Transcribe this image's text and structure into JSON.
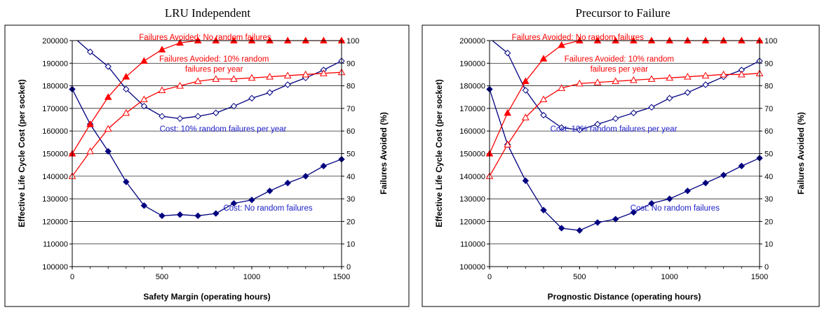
{
  "colors": {
    "cost": "#000080",
    "failures": "#ff0000",
    "grid": "#000000",
    "frame": "#000000",
    "annotation_cost": "#1c1cc8"
  },
  "chart_data": [
    {
      "type": "line",
      "title": "LRU Independent",
      "xlabel": "Safety Margin (operating hours)",
      "ylabel": "Effective Life Cycle Cost (per socket)",
      "y2label": "Failures Avoided (%)",
      "xlim": [
        0,
        1500
      ],
      "ylim": [
        100000,
        200000
      ],
      "y2lim": [
        0,
        100
      ],
      "x_ticks": [
        "0",
        "500",
        "1000",
        "1500"
      ],
      "y_ticks": [
        "100000",
        "110000",
        "120000",
        "130000",
        "140000",
        "150000",
        "160000",
        "170000",
        "180000",
        "190000",
        "200000"
      ],
      "y2_ticks": [
        "0",
        "10",
        "20",
        "30",
        "40",
        "50",
        "60",
        "70",
        "80",
        "90",
        "100"
      ],
      "grid": true,
      "x": [
        0,
        100,
        200,
        300,
        400,
        500,
        600,
        700,
        800,
        900,
        1000,
        1100,
        1200,
        1300,
        1400,
        1500
      ],
      "series": [
        {
          "axis": "left",
          "marker": "diamond-filled",
          "values": [
            178500,
            163000,
            151000,
            137500,
            127000,
            122500,
            123000,
            122500,
            123500,
            128000,
            129500,
            133500,
            137000,
            140000,
            144500,
            147500
          ]
        },
        {
          "axis": "left",
          "marker": "diamond-open",
          "values": [
            202000,
            195000,
            188500,
            178500,
            171000,
            166500,
            165500,
            166500,
            168000,
            171000,
            174500,
            177000,
            180500,
            183500,
            187000,
            191000
          ]
        },
        {
          "axis": "right",
          "marker": "triangle-filled",
          "values": [
            50,
            63,
            75,
            84,
            91,
            96,
            99,
            100,
            100,
            100,
            100,
            100,
            100,
            100,
            100,
            100
          ]
        },
        {
          "axis": "right",
          "marker": "triangle-open",
          "values": [
            40,
            51,
            61,
            68,
            74,
            78,
            80,
            82,
            83,
            83,
            83.5,
            84,
            84.5,
            85,
            85.5,
            86
          ]
        }
      ],
      "annotations": [
        {
          "text": "Failures Avoided: No random failures",
          "color": "red",
          "x": 740,
          "y2": 101.5
        },
        {
          "text": "Failures Avoided: 10% random",
          "color": "red",
          "x": 790,
          "y2": 92
        },
        {
          "text": "failures per year",
          "color": "red",
          "x": 790,
          "y2": 87.5
        },
        {
          "text": "Cost: 10% random failures per year",
          "color": "blue",
          "x": 840,
          "y2": 61
        },
        {
          "text": "Cost: No random failures",
          "color": "blue",
          "x": 1090,
          "y2": 26
        }
      ]
    },
    {
      "type": "line",
      "title": "Precursor to Failure",
      "xlabel": "Prognostic Distance (operating hours)",
      "ylabel": "Effective Life Cycle Cost (per socket)",
      "y2label": "Failures Avoided (%)",
      "xlim": [
        0,
        1500
      ],
      "ylim": [
        100000,
        200000
      ],
      "y2lim": [
        0,
        100
      ],
      "x_ticks": [
        "0",
        "500",
        "1000",
        "1500"
      ],
      "y_ticks": [
        "100000",
        "110000",
        "120000",
        "130000",
        "140000",
        "150000",
        "160000",
        "170000",
        "180000",
        "190000",
        "200000"
      ],
      "y2_ticks": [
        "0",
        "10",
        "20",
        "30",
        "40",
        "50",
        "60",
        "70",
        "80",
        "90",
        "100"
      ],
      "grid": true,
      "x": [
        0,
        100,
        200,
        300,
        400,
        500,
        600,
        700,
        800,
        900,
        1000,
        1100,
        1200,
        1300,
        1400,
        1500
      ],
      "series": [
        {
          "axis": "left",
          "marker": "diamond-filled",
          "values": [
            178500,
            154000,
            138000,
            125000,
            117000,
            116000,
            119500,
            121000,
            124000,
            128000,
            130000,
            133500,
            137000,
            140500,
            144500,
            148000
          ]
        },
        {
          "axis": "left",
          "marker": "diamond-open",
          "values": [
            201000,
            194500,
            178000,
            167000,
            161500,
            160500,
            163000,
            165500,
            168000,
            170500,
            174500,
            177000,
            180500,
            184000,
            187000,
            191000
          ]
        },
        {
          "axis": "right",
          "marker": "triangle-filled",
          "values": [
            50,
            68,
            82,
            92,
            98,
            100,
            100,
            100,
            100,
            100,
            100,
            100,
            100,
            100,
            100,
            100
          ]
        },
        {
          "axis": "right",
          "marker": "triangle-open",
          "values": [
            40,
            54,
            66,
            74,
            79,
            81,
            81.5,
            82,
            82.5,
            83,
            83.5,
            84,
            84.5,
            85,
            85,
            85.5
          ]
        }
      ],
      "annotations": [
        {
          "text": "Failures Avoided: No random failures",
          "color": "red",
          "x": 490,
          "y2": 101.5
        },
        {
          "text": "Failures Avoided: 10% random",
          "color": "red",
          "x": 720,
          "y2": 92
        },
        {
          "text": "failures per year",
          "color": "red",
          "x": 720,
          "y2": 87.5
        },
        {
          "text": "Cost: 10% random failures per year",
          "color": "blue",
          "x": 690,
          "y2": 61
        },
        {
          "text": "Cost: No random failures",
          "color": "blue",
          "x": 1030,
          "y2": 26
        }
      ]
    }
  ]
}
